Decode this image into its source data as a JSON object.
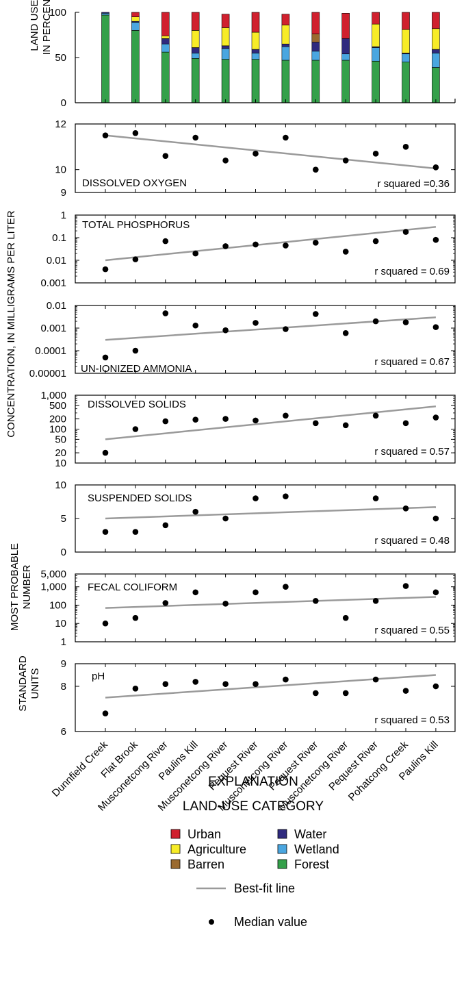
{
  "categories": [
    "Dunnfield Creek",
    "Flat Brook",
    "Musconetcong River",
    "Paulins Kill",
    "Musconetcong River",
    "Pequest River",
    "Musconetcong River",
    "Pequest River",
    "Musconetcong River",
    "Pequest River",
    "Pohatcong Creek",
    "Paulins Kill"
  ],
  "axis_labels": {
    "land_use": [
      "LAND USE,",
      "IN PERCENT"
    ],
    "concentration": "CONCENTRATION, IN MILLIGRAMS PER LITER",
    "most_probable": [
      "MOST PROBABLE",
      "NUMBER"
    ],
    "standard_units": [
      "STANDARD",
      "UNITS"
    ]
  },
  "explanation": {
    "title": "EXPLANATION",
    "subtitle": "LAND-USE CATEGORY",
    "best_fit_label": "Best-fit line",
    "median_label": "Median value"
  },
  "colors": {
    "Urban": "#d0202e",
    "Agriculture": "#f7ec27",
    "Barren": "#9a6a2f",
    "Water": "#2f2a7e",
    "Wetland": "#4aa6e0",
    "Forest": "#34a04a",
    "fit_line": "#9a9a9a"
  },
  "chart_data": [
    {
      "type": "bar",
      "stacked": true,
      "ylim": [
        0,
        100
      ],
      "yticks": [
        0,
        50,
        100
      ],
      "legend_order": [
        "Urban",
        "Water",
        "Agriculture",
        "Wetland",
        "Barren",
        "Forest"
      ],
      "series": [
        {
          "name": "Forest",
          "values": [
            97,
            80,
            56,
            49,
            48,
            48,
            47,
            47,
            47,
            46,
            45,
            39
          ]
        },
        {
          "name": "Wetland",
          "values": [
            2,
            9,
            9,
            6,
            12,
            7,
            15,
            10,
            7,
            15,
            9,
            16
          ]
        },
        {
          "name": "Water",
          "values": [
            1,
            1,
            6,
            6,
            3,
            4,
            3,
            10,
            17,
            1,
            1,
            4
          ]
        },
        {
          "name": "Barren",
          "values": [
            0,
            0,
            0,
            0,
            0,
            0,
            0,
            9,
            0,
            0,
            0,
            0
          ]
        },
        {
          "name": "Agriculture",
          "values": [
            0,
            5,
            3,
            19,
            20,
            19,
            21,
            0,
            0,
            25,
            26,
            23
          ]
        },
        {
          "name": "Urban",
          "values": [
            0,
            5,
            26,
            20,
            15,
            22,
            12,
            24,
            28,
            13,
            19,
            18
          ]
        }
      ]
    },
    {
      "type": "scatter",
      "title": "DISSOLVED OXYGEN",
      "annotation": "r squared =0.36",
      "yscale": "linear",
      "ylim": [
        9,
        12
      ],
      "yticks": [
        9,
        10,
        12
      ],
      "yticklabels": [
        "9",
        "10",
        "12"
      ],
      "values": [
        11.5,
        11.6,
        10.6,
        11.4,
        10.4,
        10.7,
        11.4,
        10.0,
        10.4,
        10.7,
        11.0,
        10.1
      ],
      "fit": [
        11.5,
        10.05
      ]
    },
    {
      "type": "scatter",
      "title": "TOTAL PHOSPHORUS",
      "annotation": "r squared = 0.69",
      "yscale": "log",
      "ylim": [
        0.001,
        1
      ],
      "yticks": [
        0.001,
        0.01,
        0.1,
        1
      ],
      "yticklabels": [
        "0.001",
        "0.01",
        "0.1",
        "1"
      ],
      "values": [
        0.004,
        0.011,
        0.07,
        0.02,
        0.042,
        0.05,
        0.045,
        0.06,
        0.024,
        0.07,
        0.18,
        0.08
      ],
      "fit": [
        0.01,
        0.3
      ]
    },
    {
      "type": "scatter",
      "title": "UN-IONIZED AMMONIA",
      "annotation": "r squared = 0.67",
      "yscale": "log",
      "ylim": [
        1e-05,
        0.01
      ],
      "yticks": [
        1e-05,
        0.0001,
        0.001,
        0.01
      ],
      "yticklabels": [
        "0.00001",
        "0.0001",
        "0.001",
        "0.01"
      ],
      "values": [
        5e-05,
        0.0001,
        0.0045,
        0.0013,
        0.0008,
        0.0017,
        0.0009,
        0.0042,
        0.0006,
        0.002,
        0.0018,
        0.0011
      ],
      "fit": [
        0.0003,
        0.003
      ]
    },
    {
      "type": "scatter",
      "title": "DISSOLVED SOLIDS",
      "annotation": "r squared = 0.57",
      "yscale": "log",
      "ylim": [
        10,
        1000
      ],
      "yticks": [
        10,
        20,
        50,
        100,
        200,
        500,
        1000
      ],
      "yticklabels": [
        "10",
        "20",
        "50",
        "100",
        "200",
        "500",
        "1,000"
      ],
      "values": [
        20,
        100,
        170,
        190,
        200,
        180,
        250,
        150,
        130,
        250,
        150,
        220
      ],
      "fit": [
        50,
        470
      ]
    },
    {
      "type": "scatter",
      "title": "SUSPENDED SOLIDS",
      "annotation": "r squared = 0.48",
      "yscale": "linear",
      "ylim": [
        0,
        10
      ],
      "yticks": [
        0,
        5,
        10
      ],
      "yticklabels": [
        "0",
        "5",
        "10"
      ],
      "values": [
        3,
        3,
        4,
        6,
        5,
        8,
        8.3,
        null,
        null,
        8,
        6.5,
        5
      ],
      "fit": [
        5.0,
        6.7
      ]
    },
    {
      "type": "scatter",
      "title": "FECAL COLIFORM",
      "annotation": "r squared = 0.55",
      "yscale": "log",
      "ylim": [
        1,
        5000
      ],
      "yticks": [
        1,
        10,
        100,
        1000,
        5000
      ],
      "yticklabels": [
        "1",
        "10",
        "100",
        "1,000",
        "5,000"
      ],
      "values": [
        10,
        20,
        130,
        500,
        120,
        500,
        1000,
        170,
        20,
        170,
        1100,
        500
      ],
      "fit": [
        70,
        280
      ]
    },
    {
      "type": "scatter",
      "title": "pH",
      "annotation": "r squared = 0.53",
      "yscale": "linear",
      "ylim": [
        6,
        9
      ],
      "yticks": [
        6,
        8,
        9
      ],
      "yticklabels": [
        "6",
        "8",
        "9"
      ],
      "values": [
        6.8,
        7.9,
        8.1,
        8.2,
        8.1,
        8.1,
        8.3,
        7.7,
        7.7,
        8.3,
        7.8,
        8.0
      ],
      "fit": [
        7.5,
        8.5
      ]
    }
  ]
}
